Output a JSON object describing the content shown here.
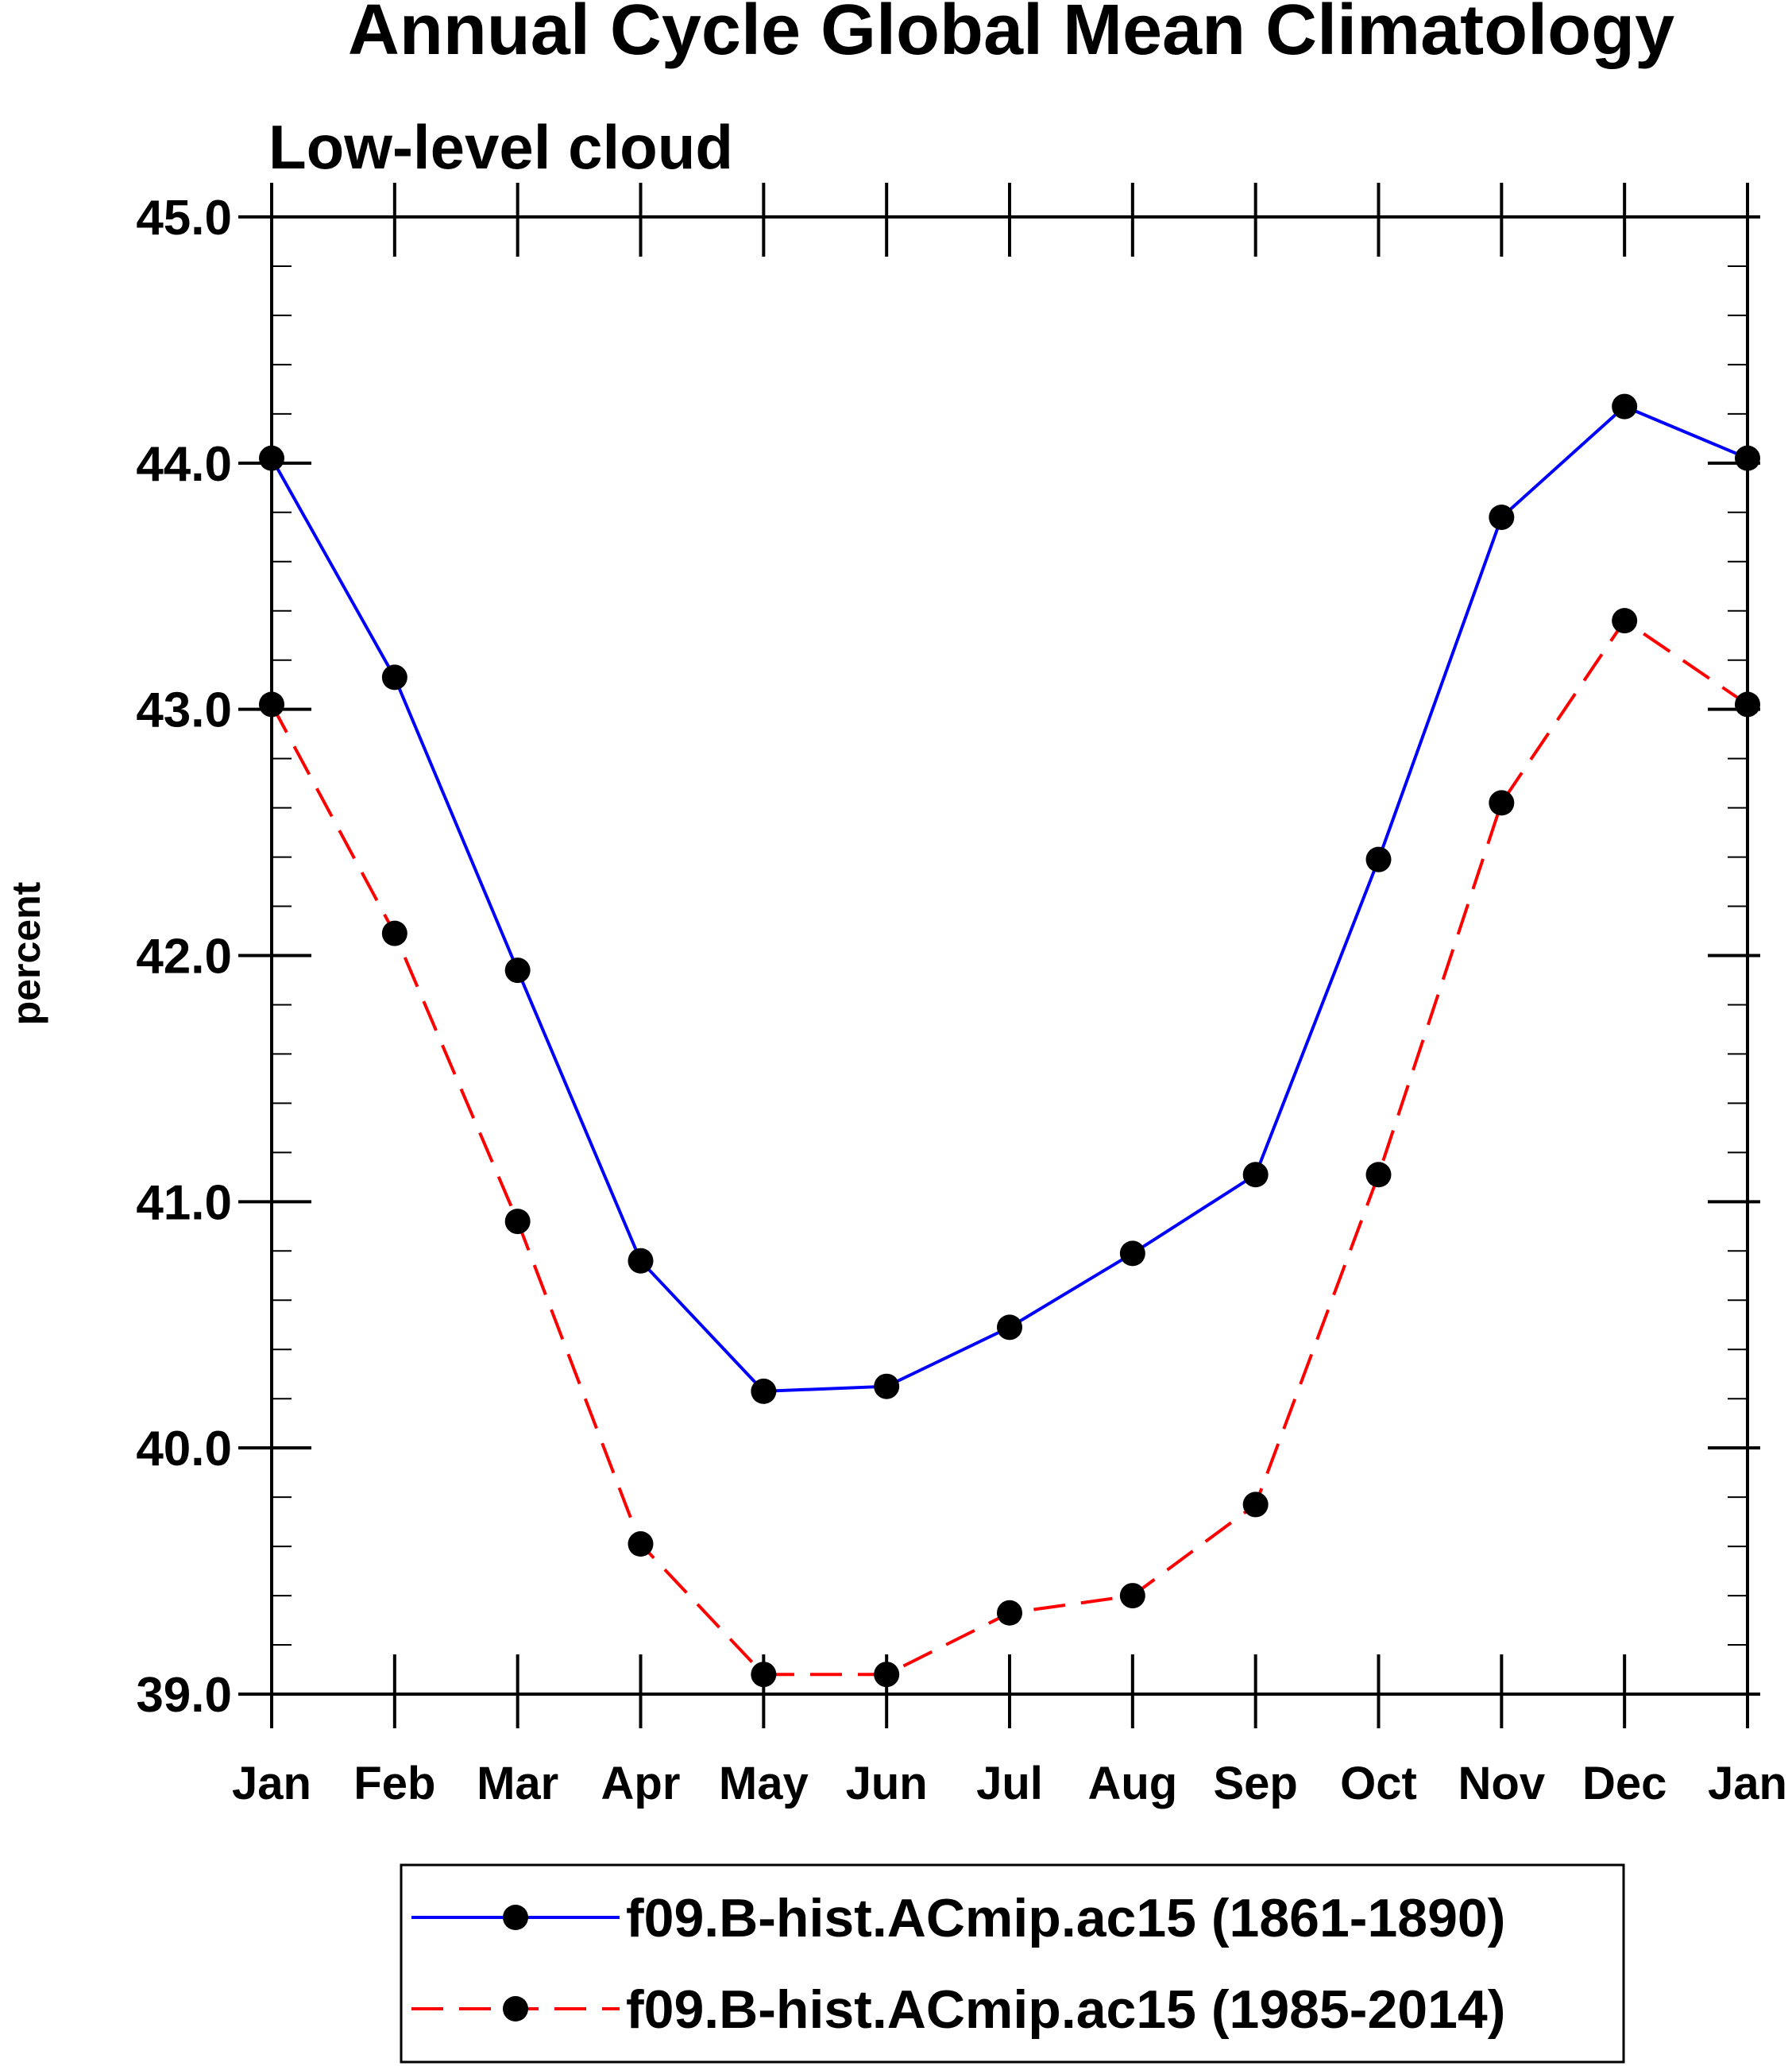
{
  "chart_data": {
    "type": "line",
    "title": "Annual Cycle Global Mean Climatology",
    "subtitle": "Low-level cloud",
    "xlabel": "",
    "ylabel": "percent",
    "ylim": [
      39.0,
      45.0
    ],
    "yticks": [
      "39.0",
      "40.0",
      "41.0",
      "42.0",
      "43.0",
      "44.0",
      "45.0"
    ],
    "categories": [
      "Jan",
      "Feb",
      "Mar",
      "Apr",
      "May",
      "Jun",
      "Jul",
      "Aug",
      "Sep",
      "Oct",
      "Nov",
      "Dec",
      "Jan"
    ],
    "grid": false,
    "legend_position": "bottom",
    "series": [
      {
        "name": "f09.B-hist.ACmip.ac15 (1861-1890)",
        "color": "#0000ff",
        "line_style": "solid",
        "marker_color": "#000000",
        "values": [
          44.02,
          43.13,
          41.94,
          40.76,
          40.23,
          40.25,
          40.49,
          40.79,
          41.11,
          42.39,
          43.78,
          44.23,
          44.02
        ]
      },
      {
        "name": "f09.B-hist.ACmip.ac15 (1985-2014)",
        "color": "#ff0000",
        "line_style": "dashed",
        "marker_color": "#000000",
        "values": [
          43.02,
          42.09,
          40.92,
          39.61,
          39.08,
          39.08,
          39.33,
          39.4,
          39.77,
          41.11,
          42.62,
          43.36,
          43.02
        ]
      }
    ]
  }
}
